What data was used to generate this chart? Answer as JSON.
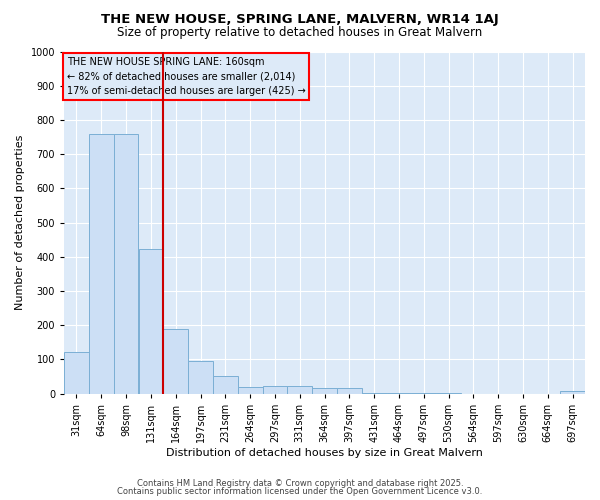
{
  "title": "THE NEW HOUSE, SPRING LANE, MALVERN, WR14 1AJ",
  "subtitle": "Size of property relative to detached houses in Great Malvern",
  "xlabel": "Distribution of detached houses by size in Great Malvern",
  "ylabel": "Number of detached properties",
  "categories": [
    "31sqm",
    "64sqm",
    "98sqm",
    "131sqm",
    "164sqm",
    "197sqm",
    "231sqm",
    "264sqm",
    "297sqm",
    "331sqm",
    "364sqm",
    "397sqm",
    "431sqm",
    "464sqm",
    "497sqm",
    "530sqm",
    "564sqm",
    "597sqm",
    "630sqm",
    "664sqm",
    "697sqm"
  ],
  "values": [
    120,
    758,
    758,
    422,
    190,
    96,
    50,
    20,
    22,
    22,
    15,
    15,
    3,
    2,
    1,
    1,
    0,
    0,
    0,
    0,
    8
  ],
  "bar_color": "#ccdff5",
  "bar_edge_color": "#7bafd4",
  "red_line_x": 3.5,
  "annotation_title": "THE NEW HOUSE SPRING LANE: 160sqm",
  "annotation_line1": "← 82% of detached houses are smaller (2,014)",
  "annotation_line2": "17% of semi-detached houses are larger (425) →",
  "vline_color": "#cc0000",
  "figure_background": "#ffffff",
  "plot_background": "#ddeaf8",
  "grid_color": "#ffffff",
  "ylim": [
    0,
    1000
  ],
  "yticks": [
    0,
    100,
    200,
    300,
    400,
    500,
    600,
    700,
    800,
    900,
    1000
  ],
  "footer1": "Contains HM Land Registry data © Crown copyright and database right 2025.",
  "footer2": "Contains public sector information licensed under the Open Government Licence v3.0."
}
